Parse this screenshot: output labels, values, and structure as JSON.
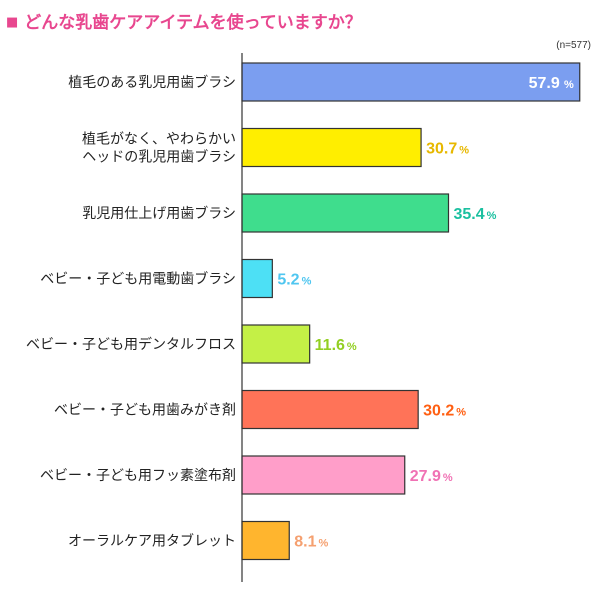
{
  "chart_data": {
    "type": "bar",
    "orientation": "horizontal",
    "title": "どんな乳歯ケアアイテムを使っていますか？",
    "title_marker": "■",
    "sample_note": "(n=577)",
    "unit": "%",
    "xlim": [
      0,
      60
    ],
    "grid": false,
    "categories": [
      [
        "植毛のある乳児用歯ブラシ"
      ],
      [
        "植毛がなく、やわらかい",
        "ヘッドの乳児用歯ブラシ"
      ],
      [
        "乳児用仕上げ用歯ブラシ"
      ],
      [
        "ベビー・子ども用電動歯ブラシ"
      ],
      [
        "ベビー・子ども用デンタルフロス"
      ],
      [
        "ベビー・子ども用歯みがき剤"
      ],
      [
        "ベビー・子ども用フッ素塗布剤"
      ],
      [
        "オーラルケア用タブレット"
      ]
    ],
    "values": [
      57.9,
      30.7,
      35.4,
      5.2,
      11.6,
      30.2,
      27.9,
      8.1
    ],
    "value_labels": [
      "57.9",
      "30.7",
      "35.4",
      "5.2",
      "11.6",
      "30.2",
      "27.9",
      "8.1"
    ],
    "bar_colors": [
      "#7b9ef0",
      "#ffee00",
      "#3fdd8d",
      "#4de0f5",
      "#c4f046",
      "#ff7358",
      "#ff9ec9",
      "#ffb52e"
    ],
    "label_colors": [
      "#ffffff",
      "#e7b800",
      "#1bc0a0",
      "#4fc6f0",
      "#93cf22",
      "#ff5f12",
      "#f072b4",
      "#f5a070"
    ]
  }
}
